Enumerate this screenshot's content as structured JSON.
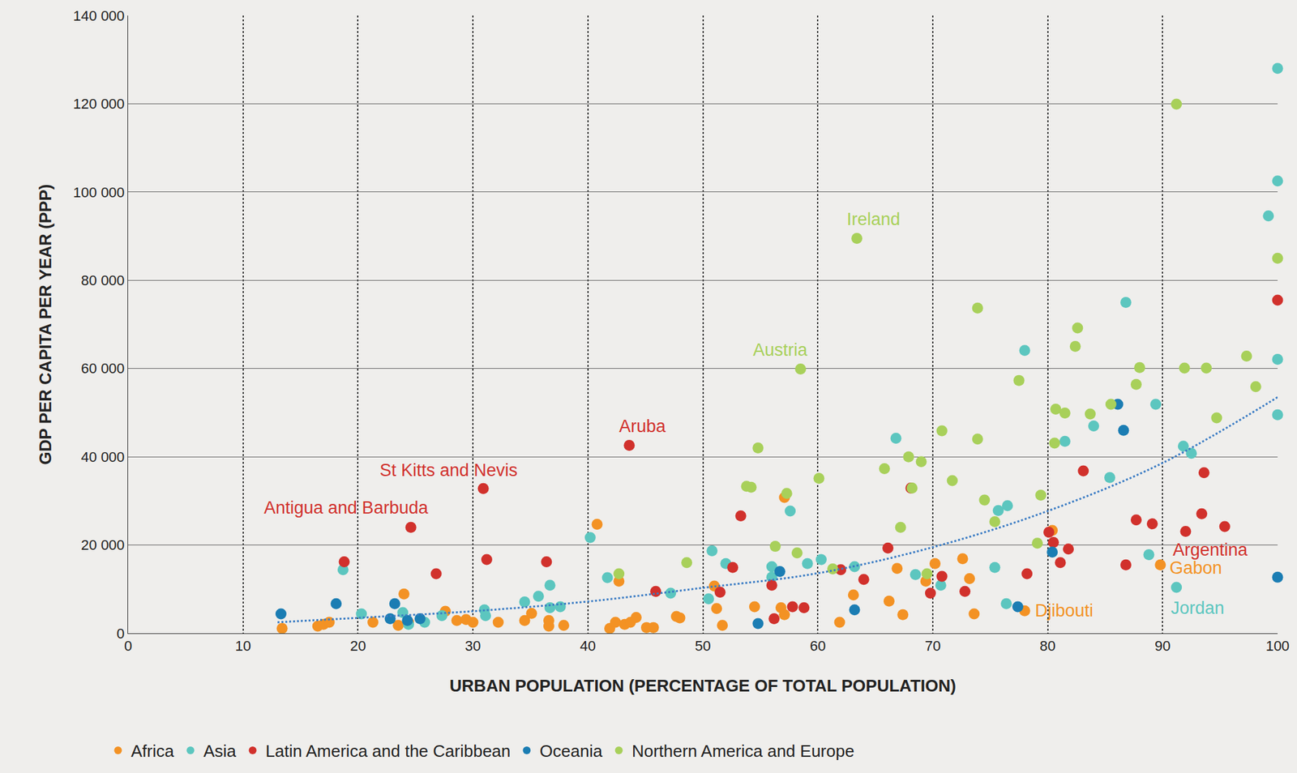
{
  "chart_data": {
    "type": "scatter",
    "x_label": "URBAN POPULATION (PERCENTAGE OF TOTAL POPULATION)",
    "y_label": "GDP PER CAPITA PER YEAR (PPP)",
    "xlim": [
      0,
      100
    ],
    "xticks": [
      0,
      10,
      20,
      30,
      40,
      50,
      60,
      70,
      80,
      90,
      100
    ],
    "ylim": [
      0,
      140000
    ],
    "yticks": [
      0,
      {
        "value": 20000,
        "label": "20 000"
      },
      {
        "value": 40000,
        "label": "40 000"
      },
      {
        "value": 60000,
        "label": "60 000"
      },
      {
        "value": 80000,
        "label": "80 000"
      },
      {
        "value": 100000,
        "label": "100 000"
      },
      {
        "value": 120000,
        "label": "120 000"
      },
      {
        "value": 140000,
        "label": "140 000"
      }
    ],
    "grid": true,
    "legend": "bottom",
    "series": [
      {
        "name": "Africa",
        "color": "#f39224",
        "marker": "circle",
        "x": [
          13.4,
          16.5,
          17,
          17.5,
          21.3,
          23.5,
          24,
          24.4,
          27.6,
          28.6,
          29.4,
          30,
          32.2,
          34.5,
          35.1,
          36.6,
          36.6,
          37.9,
          40.8,
          41.9,
          42.4,
          42.7,
          43.2,
          43.7,
          44.2,
          45.1,
          45.7,
          47.7,
          48,
          51,
          51.2,
          51.7,
          54.5,
          56.8,
          57.1,
          57.1,
          61.9,
          63.1,
          66.2,
          66.9,
          67.4,
          69.4,
          70.2,
          72.6,
          73.2,
          73.6,
          78,
          80.4,
          89.8
        ],
        "values": [
          1100,
          1600,
          2000,
          2500,
          2500,
          1800,
          8900,
          2500,
          5000,
          2900,
          3100,
          2500,
          2500,
          2900,
          4500,
          2900,
          1600,
          1800,
          24700,
          1100,
          2500,
          11800,
          2000,
          2500,
          3600,
          1300,
          1300,
          3800,
          3500,
          10700,
          5600,
          1800,
          6000,
          5800,
          30800,
          4200,
          2500,
          8700,
          7300,
          14700,
          4200,
          11800,
          15800,
          16900,
          12400,
          4400,
          5100,
          23300,
          15500
        ]
      },
      {
        "name": "Asia",
        "color": "#5cc6bf",
        "marker": "circle",
        "x": [
          18.7,
          20.3,
          23.9,
          24.4,
          25.8,
          27.3,
          31,
          31.1,
          34.5,
          35.7,
          36.7,
          36.7,
          37.6,
          40.2,
          41.7,
          47.2,
          50.5,
          50.8,
          52,
          56,
          56,
          57.6,
          59.1,
          60.3,
          63.2,
          66.8,
          68.5,
          70.7,
          75.4,
          75.7,
          76.5,
          76.4,
          78,
          81.5,
          84,
          85.4,
          86.8,
          88.8,
          89.4,
          91.2,
          91.8,
          92.5,
          99.2,
          100,
          100,
          100,
          100
        ],
        "values": [
          14400,
          4400,
          4700,
          2000,
          2500,
          4000,
          5300,
          4000,
          7100,
          8400,
          10900,
          5800,
          6000,
          21700,
          12600,
          9100,
          7800,
          18700,
          15800,
          15100,
          12700,
          27700,
          15800,
          16700,
          15100,
          44200,
          13300,
          10900,
          14900,
          27800,
          28900,
          6700,
          64100,
          43500,
          47000,
          35300,
          75000,
          17800,
          51900,
          10400,
          42400,
          40800,
          94600,
          102500,
          128000,
          62100,
          49500
        ]
      },
      {
        "name": "Latin America and the Caribbean",
        "color": "#d1312c",
        "marker": "circle",
        "x": [
          18.8,
          24.6,
          26.8,
          30.9,
          31.2,
          36.4,
          43.6,
          45.9,
          51.5,
          52.6,
          53.3,
          56,
          56.2,
          57.8,
          58.8,
          62,
          64,
          66.1,
          68.1,
          69.8,
          70.8,
          72.8,
          78.2,
          80.1,
          80.5,
          81.1,
          81.8,
          83.1,
          86.8,
          87.7,
          89.1,
          92,
          93.4,
          93.6,
          95.4,
          100
        ],
        "values": [
          16200,
          24000,
          13500,
          32800,
          16700,
          16200,
          42600,
          9500,
          9300,
          14900,
          26600,
          10900,
          3300,
          6000,
          5800,
          14400,
          12200,
          19300,
          32900,
          9100,
          12900,
          9500,
          13500,
          22900,
          20600,
          16000,
          19100,
          36800,
          15500,
          25700,
          24800,
          23100,
          27100,
          36400,
          24200,
          75500
        ]
      },
      {
        "name": "Oceania",
        "color": "#1b7db3",
        "marker": "circle",
        "x": [
          13.3,
          18.1,
          22.8,
          23.2,
          24.3,
          25.4,
          54.8,
          56.7,
          63.2,
          77.4,
          80.4,
          86.1,
          86.6,
          100
        ],
        "values": [
          4400,
          6700,
          3300,
          6700,
          2900,
          3300,
          2200,
          14000,
          5300,
          6000,
          18400,
          51900,
          46000,
          12700
        ]
      },
      {
        "name": "Northern America and Europe",
        "color": "#a8d05a",
        "marker": "circle",
        "x": [
          42.7,
          48.6,
          53.8,
          54.2,
          54.8,
          56.3,
          57.3,
          58.2,
          58.5,
          60.1,
          61.3,
          63.4,
          65.8,
          67.2,
          67.9,
          68.2,
          69,
          69.5,
          70.8,
          71.7,
          73.9,
          73.9,
          74.5,
          75.4,
          77.5,
          79.1,
          79.4,
          80.6,
          80.7,
          81.5,
          82.4,
          82.6,
          83.7,
          85.5,
          87.7,
          88,
          91.2,
          91.9,
          93.8,
          94.7,
          97.3,
          98.1,
          100
        ],
        "values": [
          13500,
          16000,
          33300,
          33100,
          42000,
          19700,
          31700,
          18200,
          59900,
          35100,
          14600,
          89500,
          37300,
          24000,
          40000,
          32900,
          38900,
          13500,
          45900,
          34600,
          73700,
          44000,
          30200,
          25300,
          57300,
          20400,
          31300,
          43100,
          50800,
          49900,
          65000,
          69200,
          49700,
          51900,
          56400,
          60200,
          119900,
          60100,
          60100,
          48800,
          62800,
          55900,
          85000
        ]
      },
      {
        "type": "line",
        "line_style": "dotted",
        "color": "#3b7cc4",
        "x": [
          13,
          20,
          30,
          40,
          50,
          60,
          70,
          80,
          90,
          100
        ],
        "values": [
          2500,
          3500,
          5000,
          7200,
          10300,
          13600,
          19500,
          27700,
          38600,
          53500
        ]
      }
    ],
    "annotations": [
      {
        "text": "Ireland",
        "x": 63.4,
        "y": 89500,
        "color": "#a8d05a"
      },
      {
        "text": "Austria",
        "x": 58.5,
        "y": 59900,
        "color": "#a8d05a"
      },
      {
        "text": "Aruba",
        "x": 43.6,
        "y": 42600,
        "color": "#d1312c"
      },
      {
        "text": "St Kitts and Nevis",
        "x": 30.9,
        "y": 32800,
        "color": "#d1312c"
      },
      {
        "text": "Antigua and Barbuda",
        "x": 24.6,
        "y": 24000,
        "color": "#d1312c"
      },
      {
        "text": "Argentina",
        "x": 92,
        "y": 23100,
        "color": "#d1312c"
      },
      {
        "text": "Gabon",
        "x": 89.8,
        "y": 15500,
        "color": "#f39224"
      },
      {
        "text": "Djibouti",
        "x": 78,
        "y": 5100,
        "color": "#f39224"
      },
      {
        "text": "Jordan",
        "x": 91.2,
        "y": 10400,
        "color": "#5cc6bf"
      }
    ]
  }
}
